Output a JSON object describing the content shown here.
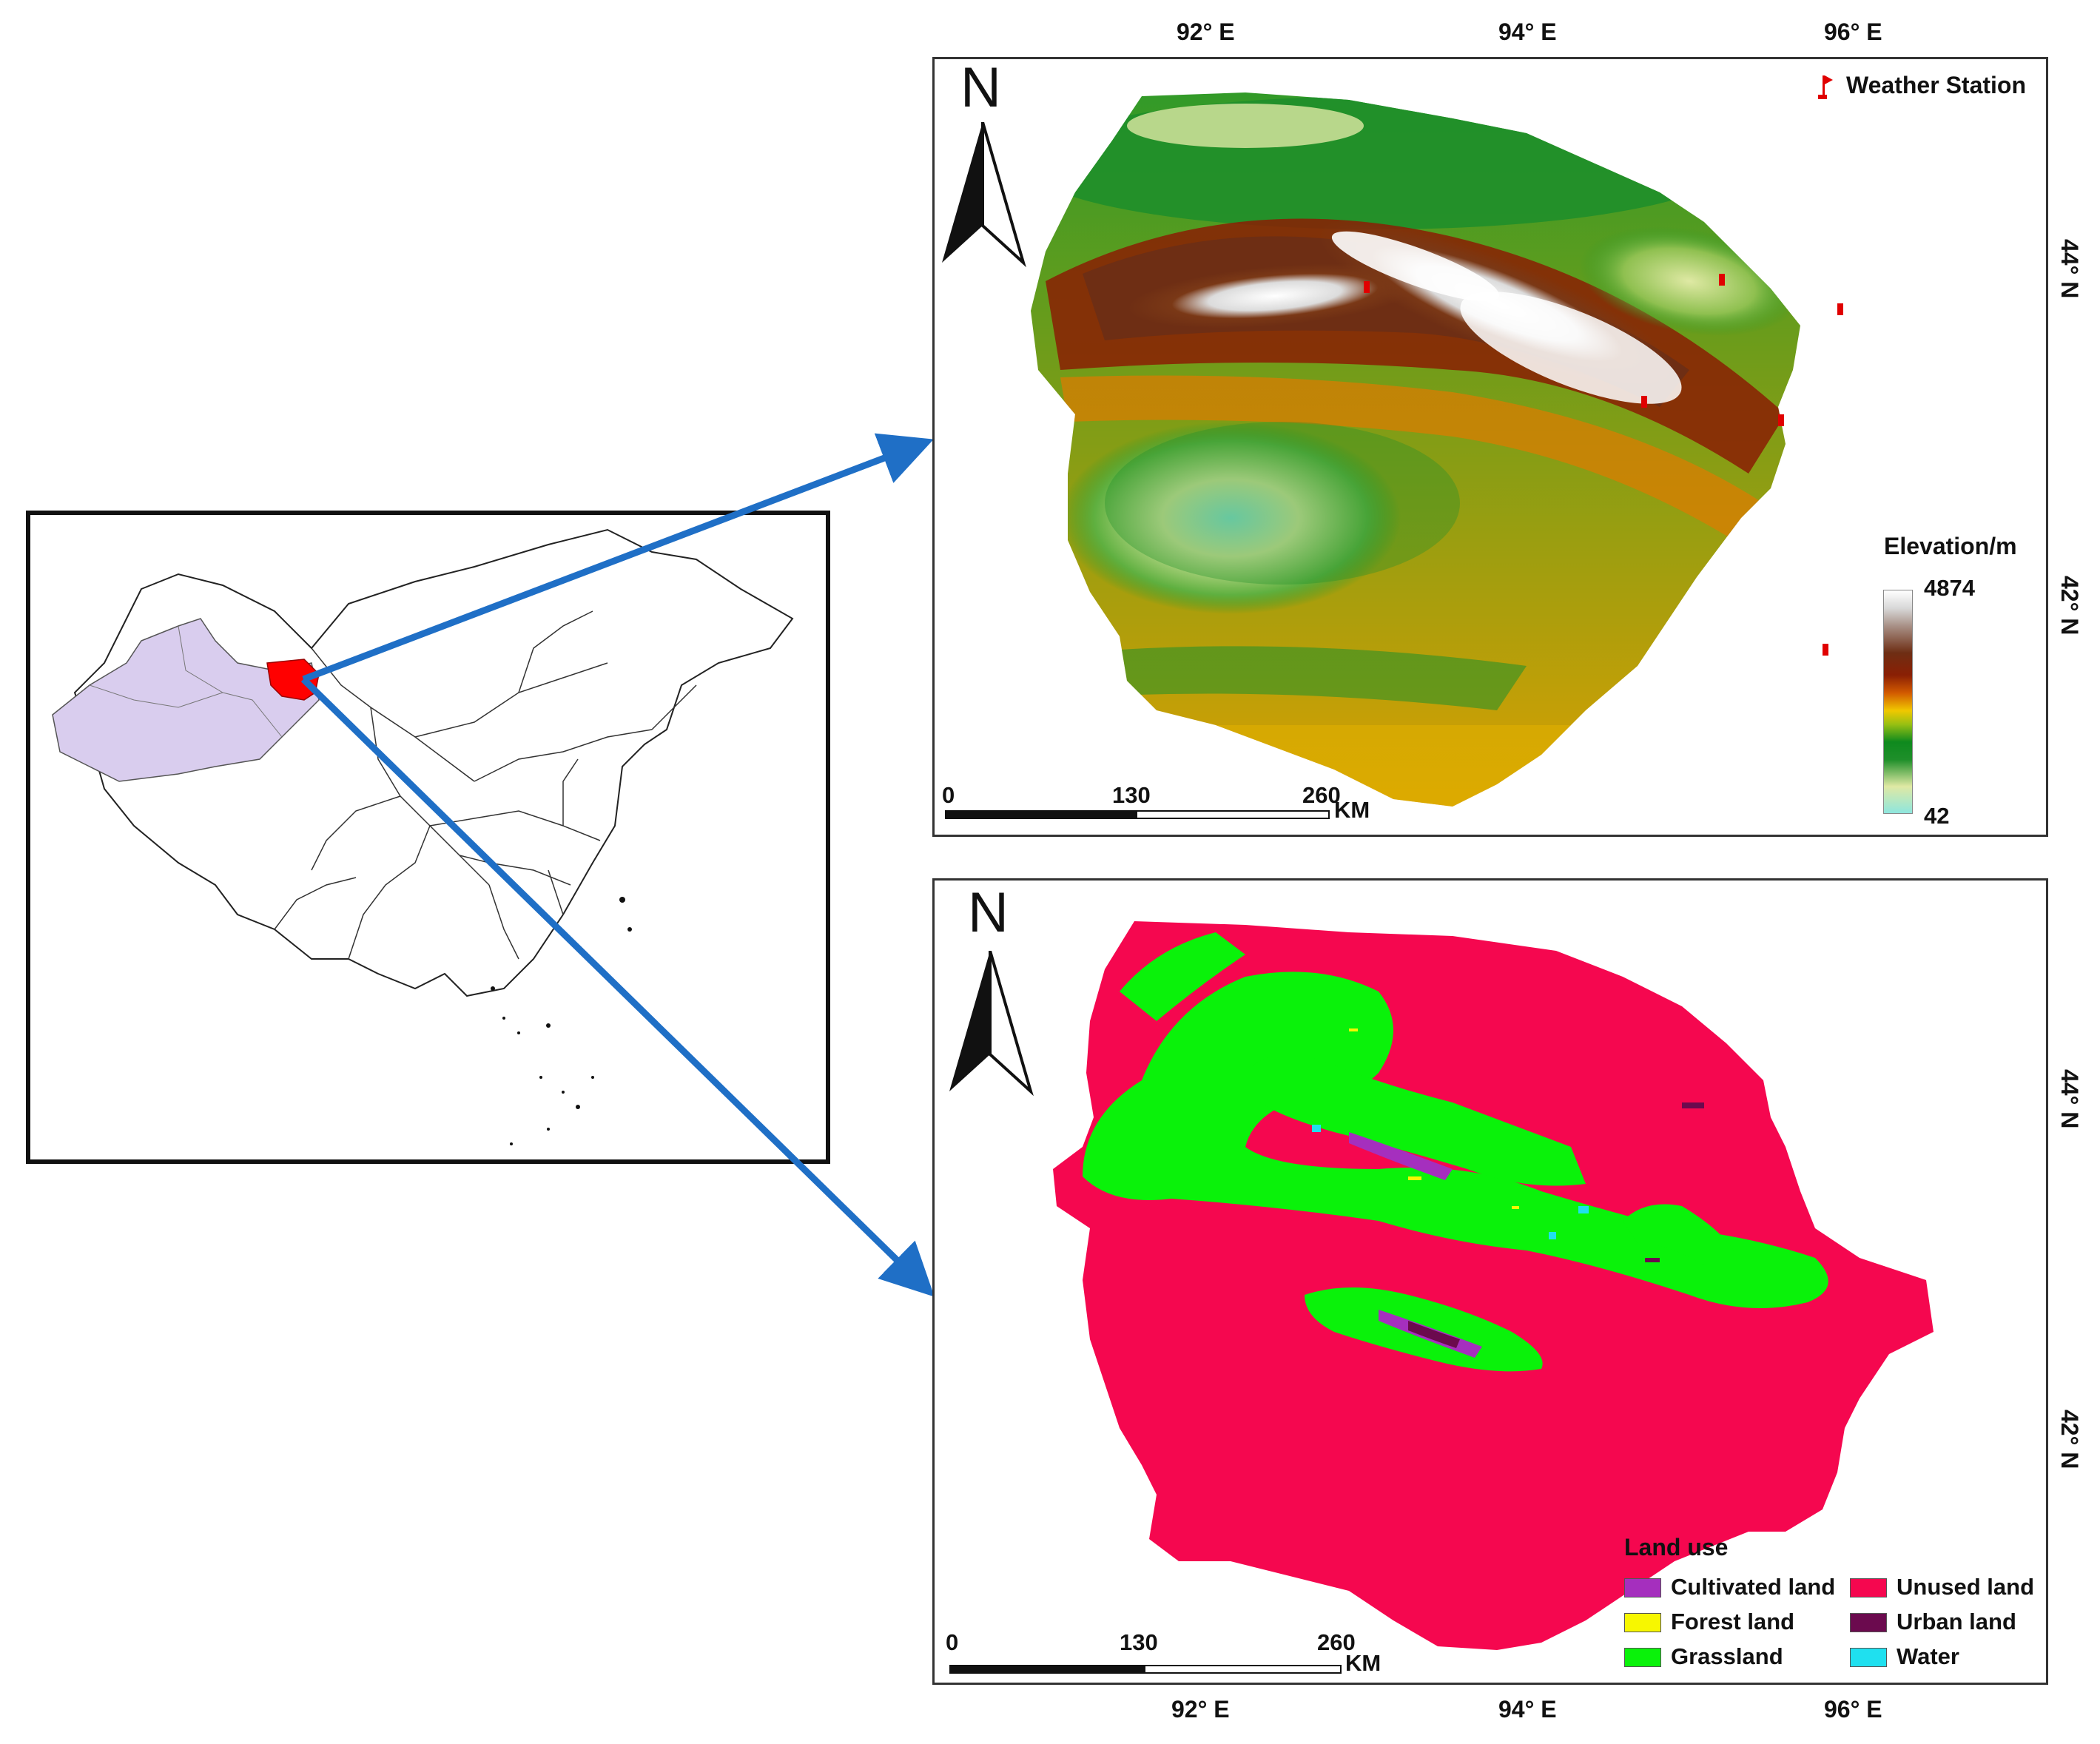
{
  "elevation_map": {
    "legend_station": "Weather Station",
    "colorbar_title": "Elevation/m",
    "colorbar_max": "4874",
    "colorbar_min": "42",
    "north": "N",
    "scale": {
      "ticks": [
        "0",
        "130",
        "260"
      ],
      "unit": "KM"
    },
    "x_ticks": [
      "92° E",
      "94° E",
      "96° E"
    ],
    "y_ticks": [
      "44° N",
      "42° N"
    ]
  },
  "landuse_map": {
    "legend_title": "Land use",
    "north": "N",
    "classes": [
      {
        "label": "Cultivated land",
        "color": "#a52fbe"
      },
      {
        "label": "Unused land",
        "color": "#f5074f"
      },
      {
        "label": "Forest land",
        "color": "#f7f700"
      },
      {
        "label": "Urban land",
        "color": "#6b0a4e"
      },
      {
        "label": "Grassland",
        "color": "#0af20a"
      },
      {
        "label": "Water",
        "color": "#1fe0ef"
      }
    ],
    "scale": {
      "ticks": [
        "0",
        "130",
        "260"
      ],
      "unit": "KM"
    },
    "x_ticks": [
      "92° E",
      "94° E",
      "96° E"
    ],
    "y_ticks": [
      "44° N",
      "42° N"
    ]
  },
  "locator_map": {
    "xinjiang_color": "#d9cdee",
    "study_area_color": "#ff0000",
    "arrow_color": "#1f6fc6"
  }
}
